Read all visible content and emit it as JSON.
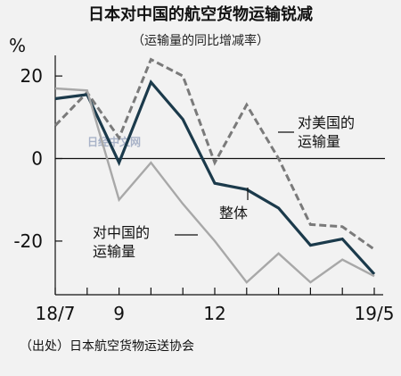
{
  "chart_data": {
    "type": "line",
    "title": "日本对中国的航空货物运输锐减",
    "subtitle": "（运输量的同比增减率）",
    "ylabel": "%",
    "ylim": [
      -33,
      25
    ],
    "yticks": [
      20,
      0,
      -20
    ],
    "ytick_labels": [
      "20",
      "0",
      "-20"
    ],
    "x": [
      "2018-07",
      "2018-08",
      "2018-09",
      "2018-10",
      "2018-11",
      "2018-12",
      "2019-01",
      "2019-02",
      "2019-03",
      "2019-04",
      "2019-05"
    ],
    "xtick_labels": [
      {
        "index": 0,
        "label": "18/7"
      },
      {
        "index": 2,
        "label": "9"
      },
      {
        "index": 5,
        "label": "12"
      },
      {
        "index": 10,
        "label": "19/5"
      }
    ],
    "grid": false,
    "series": [
      {
        "name": "对美国的运输量",
        "color": "#7a7a7a",
        "style": "dashed",
        "values": [
          8,
          16,
          5,
          24,
          20,
          -1,
          13,
          0,
          -16,
          -16.5,
          -22
        ]
      },
      {
        "name": "整体",
        "color": "#1b3a4b",
        "style": "solid",
        "values": [
          14.5,
          15.5,
          -1,
          18.5,
          9.5,
          -6,
          -7.5,
          -12,
          -21,
          -19.5,
          -28
        ]
      },
      {
        "name": "对中国的运输量",
        "color": "#a8a8a8",
        "style": "solid",
        "values": [
          17,
          16.5,
          -10,
          -1,
          -11,
          -20,
          -30,
          -23,
          -30,
          -24.5,
          -28.5
        ]
      }
    ],
    "annotations": [
      {
        "series": 0,
        "lines": [
          "对美国的",
          "运输量"
        ]
      },
      {
        "series": 1,
        "lines": [
          "整体"
        ]
      },
      {
        "series": 2,
        "lines": [
          "对中国的",
          "运输量"
        ]
      }
    ],
    "source": "（出处）日本航空货物运送协会",
    "watermark": "日经中文网"
  }
}
